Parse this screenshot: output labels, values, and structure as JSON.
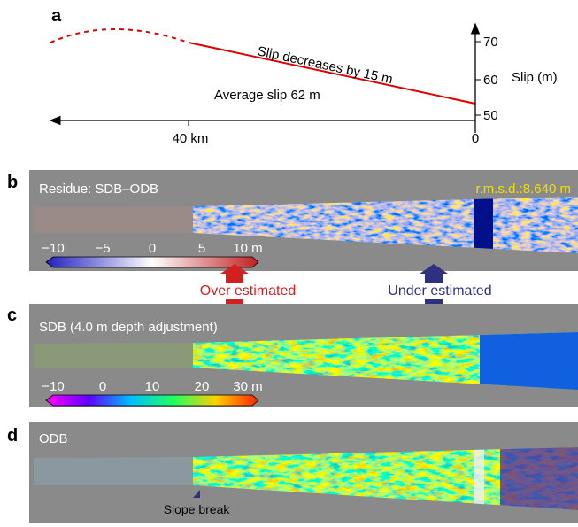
{
  "panels": [
    {
      "label": "a",
      "annotation_slope": "Slip decreases by 15 m",
      "annotation_avg": "Average slip 62 m",
      "axis_label": "Slip (m)",
      "yticks": [
        "70",
        "60",
        "50"
      ],
      "xlabels": [
        "40 km",
        "0"
      ]
    },
    {
      "label": "b",
      "title": "Residue: SDB–ODB",
      "rmsd": "r.m.s.d.:8.640 m",
      "colorbar_ticks": [
        "−10",
        "−5",
        "0",
        "5",
        "10 m"
      ]
    },
    {
      "label": "c",
      "title": "SDB (4.0 m depth adjustment)",
      "colorbar_ticks": [
        "−10",
        "0",
        "10",
        "20",
        "30 m"
      ]
    },
    {
      "label": "d",
      "title": "ODB",
      "marker": "Slope break"
    }
  ],
  "arrows": {
    "over": "Over estimated",
    "under": "Under estimated"
  }
}
